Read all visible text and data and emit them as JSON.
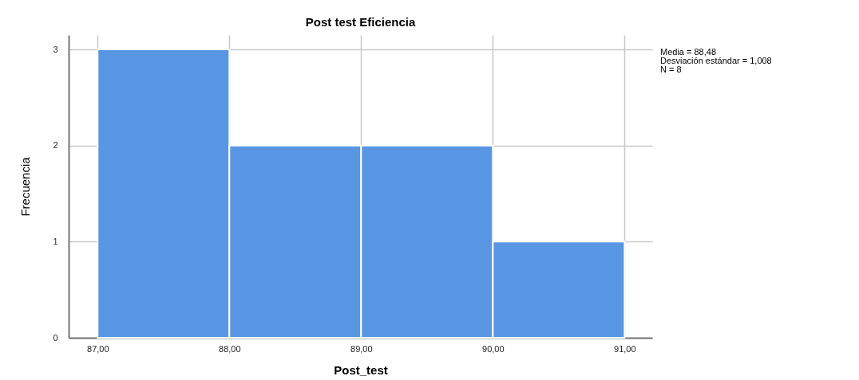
{
  "chart_data": {
    "type": "histogram",
    "title": "Post test Eficiencia",
    "xlabel": "Post_test",
    "ylabel": "Frecuencia",
    "bins": [
      87,
      88,
      89,
      90,
      91
    ],
    "values": [
      3,
      2,
      2,
      1
    ],
    "color": "#5896e3",
    "xlim": [
      86.78,
      91.21
    ],
    "xticks": [
      {
        "value": 87,
        "label": "87,00"
      },
      {
        "value": 88,
        "label": "88,00"
      },
      {
        "value": 89,
        "label": "89,00"
      },
      {
        "value": 90,
        "label": "90,00"
      },
      {
        "value": 91,
        "label": "91,00"
      }
    ],
    "ylim": [
      0,
      3.15
    ],
    "yticks": [
      0,
      1,
      2,
      3
    ],
    "grid": true,
    "annotations": [
      "Media = 88,48",
      "Desviación estándar = 1,008",
      "N = 8"
    ]
  }
}
